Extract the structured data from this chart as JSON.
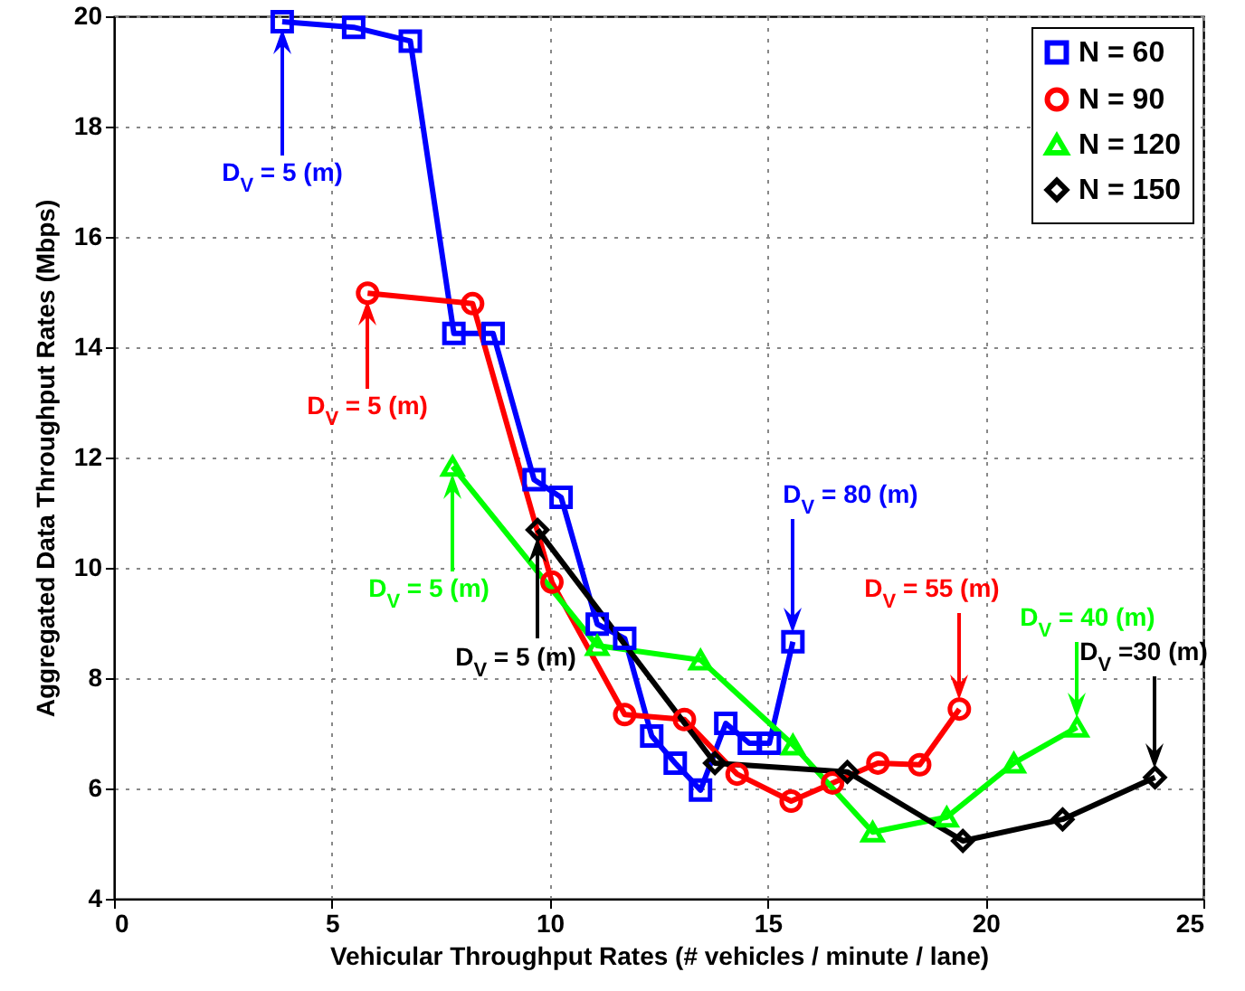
{
  "chart_data": {
    "type": "line",
    "xlabel": "Vehicular Throughput Rates (# vehicles / minute / lane)",
    "ylabel": "Aggregated Data Throughput Rates (Mbps)",
    "xlim": [
      0,
      25
    ],
    "xticks": [
      0,
      5,
      10,
      15,
      20,
      25
    ],
    "ylim": [
      4,
      20
    ],
    "yticks": [
      4,
      6,
      8,
      10,
      12,
      14,
      16,
      18,
      20
    ],
    "grid": true,
    "legend": "top right",
    "line_style": "solid",
    "series": [
      {
        "name": "N = 60",
        "color": "#0000ff",
        "marker": "square",
        "x": [
          3.86,
          5.5,
          6.8,
          7.8,
          8.7,
          9.64,
          10.26,
          11.09,
          11.72,
          12.34,
          12.88,
          13.46,
          14.04,
          14.58,
          15.04,
          15.58
        ],
        "values": [
          19.9,
          19.8,
          19.55,
          14.25,
          14.25,
          11.6,
          11.28,
          8.98,
          8.72,
          6.95,
          6.46,
          5.97,
          7.18,
          6.82,
          6.82,
          8.66
        ]
      },
      {
        "name": "N = 90",
        "color": "#ff0000",
        "marker": "circle",
        "x": [
          5.82,
          8.23,
          10.05,
          11.72,
          13.09,
          14.3,
          15.54,
          16.49,
          17.53,
          18.49,
          19.4
        ],
        "values": [
          14.98,
          14.79,
          9.74,
          7.34,
          7.25,
          6.26,
          5.77,
          6.1,
          6.46,
          6.43,
          7.44
        ]
      },
      {
        "name": "N = 120",
        "color": "#00ff00",
        "marker": "triangle",
        "x": [
          7.77,
          11.09,
          13.46,
          15.58,
          17.41,
          19.11,
          20.65,
          22.1
        ],
        "values": [
          11.84,
          8.59,
          8.33,
          6.79,
          5.21,
          5.48,
          6.46,
          7.11
        ]
      },
      {
        "name": "N = 150",
        "color": "#000000",
        "marker": "diamond",
        "x": [
          9.72,
          13.79,
          16.83,
          19.48,
          21.77,
          23.89
        ],
        "values": [
          10.69,
          6.46,
          6.3,
          5.05,
          5.44,
          6.2
        ]
      }
    ],
    "annotations": [
      "D$_{V}$ = 5 (m)",
      "D$_{V}$ = 5 (m)",
      "D$_{V}$ = 5 (m)",
      "D$_{V}$ = 5 (m)",
      "D$_{V}$ = 80 (m)",
      "D$_{V}$ = 55 (m)",
      "D$_{V}$ = 40 (m)",
      "D$_{V}$ =30 (m)"
    ]
  }
}
